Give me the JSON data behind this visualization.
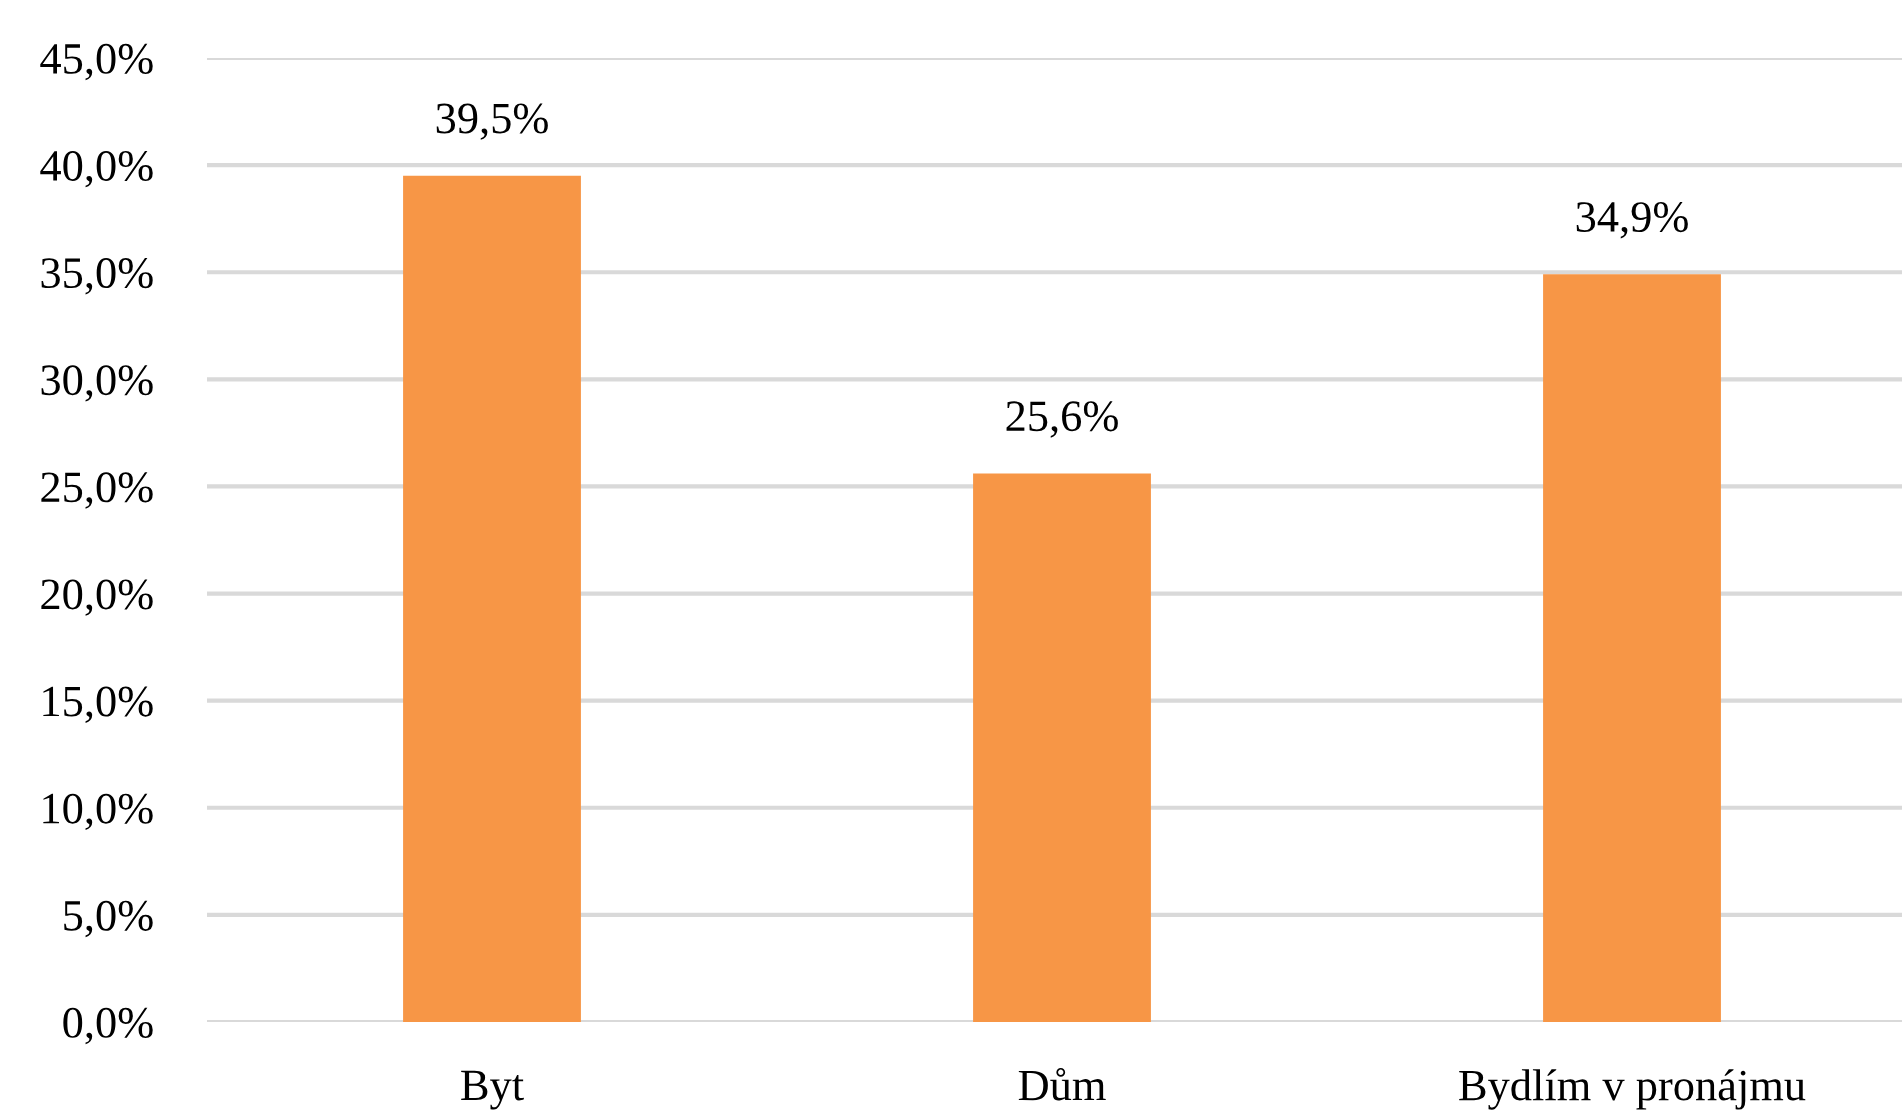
{
  "chart_data": {
    "type": "bar",
    "categories": [
      "Byt",
      "Dům",
      "Bydlím v pronájmu"
    ],
    "values": [
      39.5,
      25.6,
      34.9
    ],
    "value_labels": [
      "39,5%",
      "25,6%",
      "34,9%"
    ],
    "color": "#f79646",
    "ylim": [
      0,
      45
    ],
    "yticks": [
      {
        "value": 0,
        "label": "0,0%"
      },
      {
        "value": 5,
        "label": "5,0%"
      },
      {
        "value": 10,
        "label": "10,0%"
      },
      {
        "value": 15,
        "label": "15,0%"
      },
      {
        "value": 20,
        "label": "20,0%"
      },
      {
        "value": 25,
        "label": "25,0%"
      },
      {
        "value": 30,
        "label": "30,0%"
      },
      {
        "value": 35,
        "label": "35,0%"
      },
      {
        "value": 40,
        "label": "40,0%"
      },
      {
        "value": 45,
        "label": "45,0%"
      }
    ],
    "grid": "y",
    "legend": false
  }
}
